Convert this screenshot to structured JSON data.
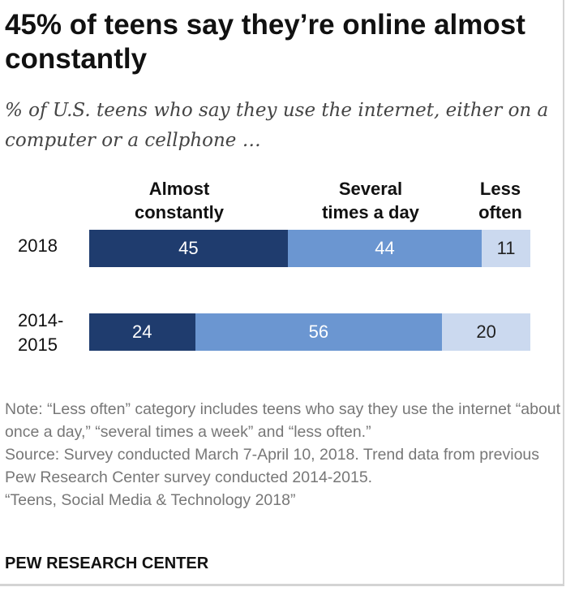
{
  "title": "45% of teens say they’re online almost constantly",
  "subtitle": "% of U.S. teens who say they use the internet, either on a computer or a cellphone …",
  "chart_data": {
    "type": "bar",
    "orientation": "horizontal-stacked",
    "categories": [
      "2018",
      "2014-2015"
    ],
    "series": [
      {
        "name": "Almost constantly",
        "values": [
          45,
          24
        ],
        "color": "#1f3c6e",
        "label_color": "#ffffff"
      },
      {
        "name": "Several times a day",
        "values": [
          44,
          56
        ],
        "color": "#6b96d1",
        "label_color": "#ffffff"
      },
      {
        "name": "Less often",
        "values": [
          11,
          20
        ],
        "color": "#cbd9ef",
        "label_color": "#222222"
      }
    ],
    "column_headers": [
      {
        "line1": "Almost",
        "line2": "constantly"
      },
      {
        "line1": "Several",
        "line2": "times a day"
      },
      {
        "line1": "Less",
        "line2": "often"
      }
    ],
    "row_labels": [
      {
        "line1": "2018",
        "line2": ""
      },
      {
        "line1": "2014-",
        "line2": "2015"
      }
    ],
    "xlim": [
      0,
      100
    ]
  },
  "notes": {
    "note": "Note: “Less often” category includes teens who say they use the internet “about once a day,” “several times a week” and “less often.”",
    "source": "Source: Survey conducted March 7-April 10, 2018. Trend data from previous Pew Research Center survey conducted 2014-2015.",
    "report": "“Teens, Social Media & Technology 2018”"
  },
  "brand": "PEW RESEARCH CENTER"
}
